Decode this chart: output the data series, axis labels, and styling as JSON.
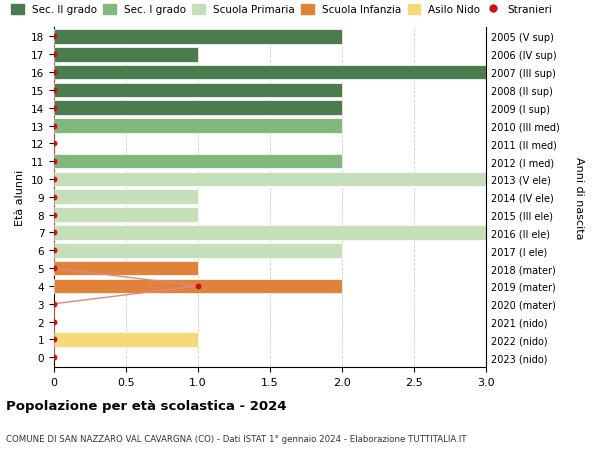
{
  "ages": [
    18,
    17,
    16,
    15,
    14,
    13,
    12,
    11,
    10,
    9,
    8,
    7,
    6,
    5,
    4,
    3,
    2,
    1,
    0
  ],
  "right_labels": [
    "2005 (V sup)",
    "2006 (IV sup)",
    "2007 (III sup)",
    "2008 (II sup)",
    "2009 (I sup)",
    "2010 (III med)",
    "2011 (II med)",
    "2012 (I med)",
    "2013 (V ele)",
    "2014 (IV ele)",
    "2015 (III ele)",
    "2016 (II ele)",
    "2017 (I ele)",
    "2018 (mater)",
    "2019 (mater)",
    "2020 (mater)",
    "2021 (nido)",
    "2022 (nido)",
    "2023 (nido)"
  ],
  "bar_data": [
    {
      "age": 18,
      "type": "sec2",
      "value": 2.0
    },
    {
      "age": 17,
      "type": "sec2",
      "value": 1.0
    },
    {
      "age": 16,
      "type": "sec2",
      "value": 3.0
    },
    {
      "age": 15,
      "type": "sec2",
      "value": 2.0
    },
    {
      "age": 14,
      "type": "sec2",
      "value": 2.0
    },
    {
      "age": 13,
      "type": "sec1",
      "value": 2.0
    },
    {
      "age": 12,
      "type": "sec1",
      "value": 0.0
    },
    {
      "age": 11,
      "type": "sec1",
      "value": 2.0
    },
    {
      "age": 10,
      "type": "primaria",
      "value": 3.0
    },
    {
      "age": 9,
      "type": "primaria",
      "value": 1.0
    },
    {
      "age": 8,
      "type": "primaria",
      "value": 1.0
    },
    {
      "age": 7,
      "type": "primaria",
      "value": 3.0
    },
    {
      "age": 6,
      "type": "primaria",
      "value": 2.0
    },
    {
      "age": 5,
      "type": "infanzia",
      "value": 1.0
    },
    {
      "age": 4,
      "type": "infanzia",
      "value": 2.0
    },
    {
      "age": 3,
      "type": "infanzia",
      "value": 0.0
    },
    {
      "age": 2,
      "type": "nido",
      "value": 0.0
    },
    {
      "age": 1,
      "type": "nido",
      "value": 1.0
    },
    {
      "age": 0,
      "type": "nido",
      "value": 0.0
    }
  ],
  "stranieri_data": [
    {
      "age": 18,
      "value": 0.0
    },
    {
      "age": 17,
      "value": 0.0
    },
    {
      "age": 16,
      "value": 0.0
    },
    {
      "age": 15,
      "value": 0.0
    },
    {
      "age": 14,
      "value": 0.0
    },
    {
      "age": 13,
      "value": 0.0
    },
    {
      "age": 12,
      "value": 0.0
    },
    {
      "age": 11,
      "value": 0.0
    },
    {
      "age": 10,
      "value": 0.0
    },
    {
      "age": 9,
      "value": 0.0
    },
    {
      "age": 8,
      "value": 0.0
    },
    {
      "age": 7,
      "value": 0.0
    },
    {
      "age": 6,
      "value": 0.0
    },
    {
      "age": 5,
      "value": 0.0
    },
    {
      "age": 4,
      "value": 1.0
    },
    {
      "age": 3,
      "value": 0.0
    },
    {
      "age": 2,
      "value": 0.0
    },
    {
      "age": 1,
      "value": 0.0
    },
    {
      "age": 0,
      "value": 0.0
    }
  ],
  "colors": {
    "sec2": "#4a7c4e",
    "sec1": "#80b87e",
    "primaria": "#c5dfb8",
    "infanzia": "#e0823a",
    "nido": "#f5d87a"
  },
  "stranieri_color": "#cc1111",
  "stranieri_line_color": "#dd8888",
  "title": "Popolazione per età scolastica - 2024",
  "subtitle": "COMUNE DI SAN NAZZARO VAL CAVARGNA (CO) - Dati ISTAT 1° gennaio 2024 - Elaborazione TUTTITALIA.IT",
  "ylabel": "Età alunni",
  "right_ylabel": "Anni di nascita",
  "xlim": [
    0,
    3.0
  ],
  "legend_labels": [
    "Sec. II grado",
    "Sec. I grado",
    "Scuola Primaria",
    "Scuola Infanzia",
    "Asilo Nido",
    "Stranieri"
  ]
}
